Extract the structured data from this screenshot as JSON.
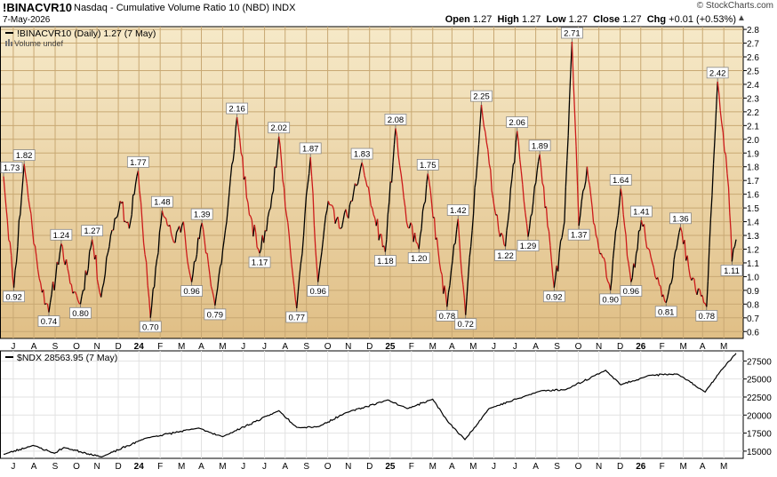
{
  "header": {
    "symbol": "!BINACVR10",
    "description": "Nasdaq - Cumulative Volume Ratio 10 (NBD)",
    "exchange": "INDX",
    "date": "7-May-2026",
    "copyright": "© StockCharts.com",
    "open_label": "Open",
    "open_value": "1.27",
    "high_label": "High",
    "high_value": "1.27",
    "low_label": "Low",
    "low_value": "1.27",
    "close_label": "Close",
    "close_value": "1.27",
    "chg_label": "Chg",
    "chg_value": "+0.01 (+0.53%)"
  },
  "colors": {
    "panel_bg_top": "#f6e9c8",
    "panel_bg_bottom": "#e3c38c",
    "rising": "#000000",
    "falling": "#cc1a1a",
    "ndx_line": "#000000"
  },
  "chart_data": [
    {
      "type": "line",
      "title": "!BINACVR10 (Daily) 1.27 (7 May)",
      "subtitle": "Volume undef",
      "x_tick_labels": [
        "J",
        "A",
        "S",
        "O",
        "N",
        "D",
        "24",
        "F",
        "M",
        "A",
        "M",
        "J",
        "J",
        "A",
        "S",
        "O",
        "N",
        "D",
        "25",
        "F",
        "M",
        "A",
        "M",
        "J",
        "J",
        "A",
        "S",
        "O",
        "N",
        "D",
        "26",
        "F",
        "M",
        "A",
        "M"
      ],
      "y_ticks": [
        "0.6",
        "0.7",
        "0.8",
        "0.9",
        "1.0",
        "1.1",
        "1.2",
        "1.3",
        "1.4",
        "1.5",
        "1.6",
        "1.7",
        "1.8",
        "1.9",
        "2.0",
        "2.1",
        "2.2",
        "2.3",
        "2.4",
        "2.5",
        "2.6",
        "2.7",
        "2.8"
      ],
      "ylim": [
        0.55,
        2.82
      ],
      "grid": true,
      "coloring": "black while rising, red while falling",
      "x_range": [
        "2023-06-05",
        "2026-05-07"
      ],
      "series": [
        {
          "name": "!BINACVR10",
          "points": [
            {
              "date": "2023-06-05",
              "value": 1.73
            },
            {
              "date": "2023-06-20",
              "value": 0.92
            },
            {
              "date": "2023-07-05",
              "value": 1.82
            },
            {
              "date": "2023-07-25",
              "value": 1.05
            },
            {
              "date": "2023-08-10",
              "value": 0.74
            },
            {
              "date": "2023-08-28",
              "value": 1.24
            },
            {
              "date": "2023-09-10",
              "value": 0.95
            },
            {
              "date": "2023-09-25",
              "value": 0.8
            },
            {
              "date": "2023-10-12",
              "value": 1.27
            },
            {
              "date": "2023-10-25",
              "value": 0.85
            },
            {
              "date": "2023-11-08",
              "value": 1.3
            },
            {
              "date": "2023-11-22",
              "value": 1.55
            },
            {
              "date": "2023-12-05",
              "value": 1.35
            },
            {
              "date": "2023-12-18",
              "value": 1.77
            },
            {
              "date": "2024-01-05",
              "value": 0.7
            },
            {
              "date": "2024-01-22",
              "value": 1.48
            },
            {
              "date": "2024-02-08",
              "value": 1.25
            },
            {
              "date": "2024-02-22",
              "value": 1.4
            },
            {
              "date": "2024-03-05",
              "value": 0.96
            },
            {
              "date": "2024-03-20",
              "value": 1.39
            },
            {
              "date": "2024-04-08",
              "value": 0.79
            },
            {
              "date": "2024-04-25",
              "value": 1.4
            },
            {
              "date": "2024-05-10",
              "value": 2.16
            },
            {
              "date": "2024-05-28",
              "value": 1.45
            },
            {
              "date": "2024-06-12",
              "value": 1.17
            },
            {
              "date": "2024-06-28",
              "value": 1.5
            },
            {
              "date": "2024-07-10",
              "value": 2.02
            },
            {
              "date": "2024-07-25",
              "value": 1.3
            },
            {
              "date": "2024-08-05",
              "value": 0.77
            },
            {
              "date": "2024-08-25",
              "value": 1.87
            },
            {
              "date": "2024-09-05",
              "value": 0.96
            },
            {
              "date": "2024-09-20",
              "value": 1.55
            },
            {
              "date": "2024-10-08",
              "value": 1.35
            },
            {
              "date": "2024-10-25",
              "value": 1.55
            },
            {
              "date": "2024-11-08",
              "value": 1.83
            },
            {
              "date": "2024-11-25",
              "value": 1.45
            },
            {
              "date": "2024-12-12",
              "value": 1.18
            },
            {
              "date": "2024-12-27",
              "value": 2.08
            },
            {
              "date": "2025-01-12",
              "value": 1.4
            },
            {
              "date": "2025-01-30",
              "value": 1.2
            },
            {
              "date": "2025-02-12",
              "value": 1.75
            },
            {
              "date": "2025-03-01",
              "value": 1.1
            },
            {
              "date": "2025-03-12",
              "value": 0.78
            },
            {
              "date": "2025-03-28",
              "value": 1.42
            },
            {
              "date": "2025-04-08",
              "value": 0.72
            },
            {
              "date": "2025-05-01",
              "value": 2.25
            },
            {
              "date": "2025-05-20",
              "value": 1.5
            },
            {
              "date": "2025-06-05",
              "value": 1.22
            },
            {
              "date": "2025-06-22",
              "value": 2.06
            },
            {
              "date": "2025-07-08",
              "value": 1.29
            },
            {
              "date": "2025-07-25",
              "value": 1.89
            },
            {
              "date": "2025-08-15",
              "value": 0.92
            },
            {
              "date": "2025-08-30",
              "value": 1.4
            },
            {
              "date": "2025-09-10",
              "value": 2.71
            },
            {
              "date": "2025-09-20",
              "value": 1.37
            },
            {
              "date": "2025-10-02",
              "value": 1.8
            },
            {
              "date": "2025-10-15",
              "value": 1.3
            },
            {
              "date": "2025-11-05",
              "value": 0.9
            },
            {
              "date": "2025-11-20",
              "value": 1.64
            },
            {
              "date": "2025-12-05",
              "value": 0.96
            },
            {
              "date": "2025-12-20",
              "value": 1.41
            },
            {
              "date": "2026-01-05",
              "value": 1.1
            },
            {
              "date": "2026-01-25",
              "value": 0.81
            },
            {
              "date": "2026-02-15",
              "value": 1.36
            },
            {
              "date": "2026-03-01",
              "value": 1.0
            },
            {
              "date": "2026-03-25",
              "value": 0.78
            },
            {
              "date": "2026-04-10",
              "value": 2.42
            },
            {
              "date": "2026-04-26",
              "value": 1.65
            },
            {
              "date": "2026-05-01",
              "value": 1.11
            },
            {
              "date": "2026-05-07",
              "value": 1.27
            }
          ]
        }
      ],
      "annotations": [
        {
          "date": "2023-06-05",
          "label": "1.73",
          "pos": "above"
        },
        {
          "date": "2023-06-20",
          "label": "0.92",
          "pos": "below"
        },
        {
          "date": "2023-07-05",
          "label": "1.82",
          "pos": "above"
        },
        {
          "date": "2023-08-10",
          "label": "0.74",
          "pos": "below"
        },
        {
          "date": "2023-08-28",
          "label": "1.24",
          "pos": "above"
        },
        {
          "date": "2023-09-25",
          "label": "0.80",
          "pos": "below"
        },
        {
          "date": "2023-10-12",
          "label": "1.27",
          "pos": "above"
        },
        {
          "date": "2023-12-18",
          "label": "1.77",
          "pos": "above"
        },
        {
          "date": "2024-01-05",
          "label": "0.70",
          "pos": "below"
        },
        {
          "date": "2024-01-22",
          "label": "1.48",
          "pos": "above"
        },
        {
          "date": "2024-03-05",
          "label": "0.96",
          "pos": "below"
        },
        {
          "date": "2024-03-20",
          "label": "1.39",
          "pos": "above"
        },
        {
          "date": "2024-04-08",
          "label": "0.79",
          "pos": "below"
        },
        {
          "date": "2024-05-10",
          "label": "2.16",
          "pos": "above"
        },
        {
          "date": "2024-06-12",
          "label": "1.17",
          "pos": "below"
        },
        {
          "date": "2024-07-10",
          "label": "2.02",
          "pos": "above"
        },
        {
          "date": "2024-08-05",
          "label": "0.77",
          "pos": "below"
        },
        {
          "date": "2024-08-25",
          "label": "1.87",
          "pos": "above"
        },
        {
          "date": "2024-09-05",
          "label": "0.96",
          "pos": "below"
        },
        {
          "date": "2024-11-08",
          "label": "1.83",
          "pos": "above"
        },
        {
          "date": "2024-12-12",
          "label": "1.18",
          "pos": "below"
        },
        {
          "date": "2024-12-27",
          "label": "2.08",
          "pos": "above"
        },
        {
          "date": "2025-01-30",
          "label": "1.20",
          "pos": "below"
        },
        {
          "date": "2025-02-12",
          "label": "1.75",
          "pos": "above"
        },
        {
          "date": "2025-03-12",
          "label": "0.78",
          "pos": "below"
        },
        {
          "date": "2025-03-28",
          "label": "1.42",
          "pos": "above"
        },
        {
          "date": "2025-04-08",
          "label": "0.72",
          "pos": "below"
        },
        {
          "date": "2025-05-01",
          "label": "2.25",
          "pos": "above"
        },
        {
          "date": "2025-06-05",
          "label": "1.22",
          "pos": "below"
        },
        {
          "date": "2025-06-22",
          "label": "2.06",
          "pos": "above"
        },
        {
          "date": "2025-07-08",
          "label": "1.29",
          "pos": "below"
        },
        {
          "date": "2025-07-25",
          "label": "1.89",
          "pos": "above"
        },
        {
          "date": "2025-08-15",
          "label": "0.92",
          "pos": "below"
        },
        {
          "date": "2025-09-10",
          "label": "2.71",
          "pos": "above"
        },
        {
          "date": "2025-09-20",
          "label": "1.37",
          "pos": "below"
        },
        {
          "date": "2025-11-05",
          "label": "0.90",
          "pos": "below"
        },
        {
          "date": "2025-11-20",
          "label": "1.64",
          "pos": "above"
        },
        {
          "date": "2025-12-05",
          "label": "0.96",
          "pos": "below"
        },
        {
          "date": "2025-12-20",
          "label": "1.41",
          "pos": "above"
        },
        {
          "date": "2026-01-25",
          "label": "0.81",
          "pos": "below"
        },
        {
          "date": "2026-02-15",
          "label": "1.36",
          "pos": "above"
        },
        {
          "date": "2026-03-25",
          "label": "0.78",
          "pos": "below"
        },
        {
          "date": "2026-04-10",
          "label": "2.42",
          "pos": "above"
        },
        {
          "date": "2026-05-01",
          "label": "1.11",
          "pos": "below"
        }
      ]
    },
    {
      "type": "line",
      "title": "$NDX 28563.95 (7 May)",
      "y_ticks": [
        "15000",
        "17500",
        "20000",
        "22500",
        "25000",
        "27500"
      ],
      "ylim": [
        14000,
        28900
      ],
      "grid": true,
      "x_tick_labels": [
        "J",
        "A",
        "S",
        "O",
        "N",
        "D",
        "24",
        "F",
        "M",
        "A",
        "M",
        "J",
        "J",
        "A",
        "S",
        "O",
        "N",
        "D",
        "25",
        "F",
        "M",
        "A",
        "M",
        "J",
        "J",
        "A",
        "S",
        "O",
        "N",
        "D",
        "26",
        "F",
        "M",
        "A",
        "M"
      ],
      "x_range": [
        "2023-06-05",
        "2026-05-07"
      ],
      "series": [
        {
          "name": "$NDX",
          "points": [
            {
              "date": "2023-06-05",
              "value": 14550
            },
            {
              "date": "2023-07-18",
              "value": 15800
            },
            {
              "date": "2023-08-18",
              "value": 14700
            },
            {
              "date": "2023-09-01",
              "value": 15500
            },
            {
              "date": "2023-10-26",
              "value": 14200
            },
            {
              "date": "2023-12-29",
              "value": 16800
            },
            {
              "date": "2024-03-15",
              "value": 18200
            },
            {
              "date": "2024-04-19",
              "value": 17000
            },
            {
              "date": "2024-07-10",
              "value": 20600
            },
            {
              "date": "2024-08-05",
              "value": 18300
            },
            {
              "date": "2024-09-06",
              "value": 18400
            },
            {
              "date": "2024-10-15",
              "value": 20300
            },
            {
              "date": "2024-12-16",
              "value": 22100
            },
            {
              "date": "2025-01-13",
              "value": 20900
            },
            {
              "date": "2025-02-19",
              "value": 22200
            },
            {
              "date": "2025-03-13",
              "value": 19100
            },
            {
              "date": "2025-04-07",
              "value": 16600
            },
            {
              "date": "2025-05-12",
              "value": 20900
            },
            {
              "date": "2025-07-28",
              "value": 23400
            },
            {
              "date": "2025-08-31",
              "value": 23500
            },
            {
              "date": "2025-10-29",
              "value": 26200
            },
            {
              "date": "2025-11-20",
              "value": 24200
            },
            {
              "date": "2025-12-31",
              "value": 25500
            },
            {
              "date": "2026-02-10",
              "value": 25700
            },
            {
              "date": "2026-03-23",
              "value": 23200
            },
            {
              "date": "2026-04-15",
              "value": 26200
            },
            {
              "date": "2026-05-07",
              "value": 28564
            }
          ]
        }
      ]
    }
  ]
}
